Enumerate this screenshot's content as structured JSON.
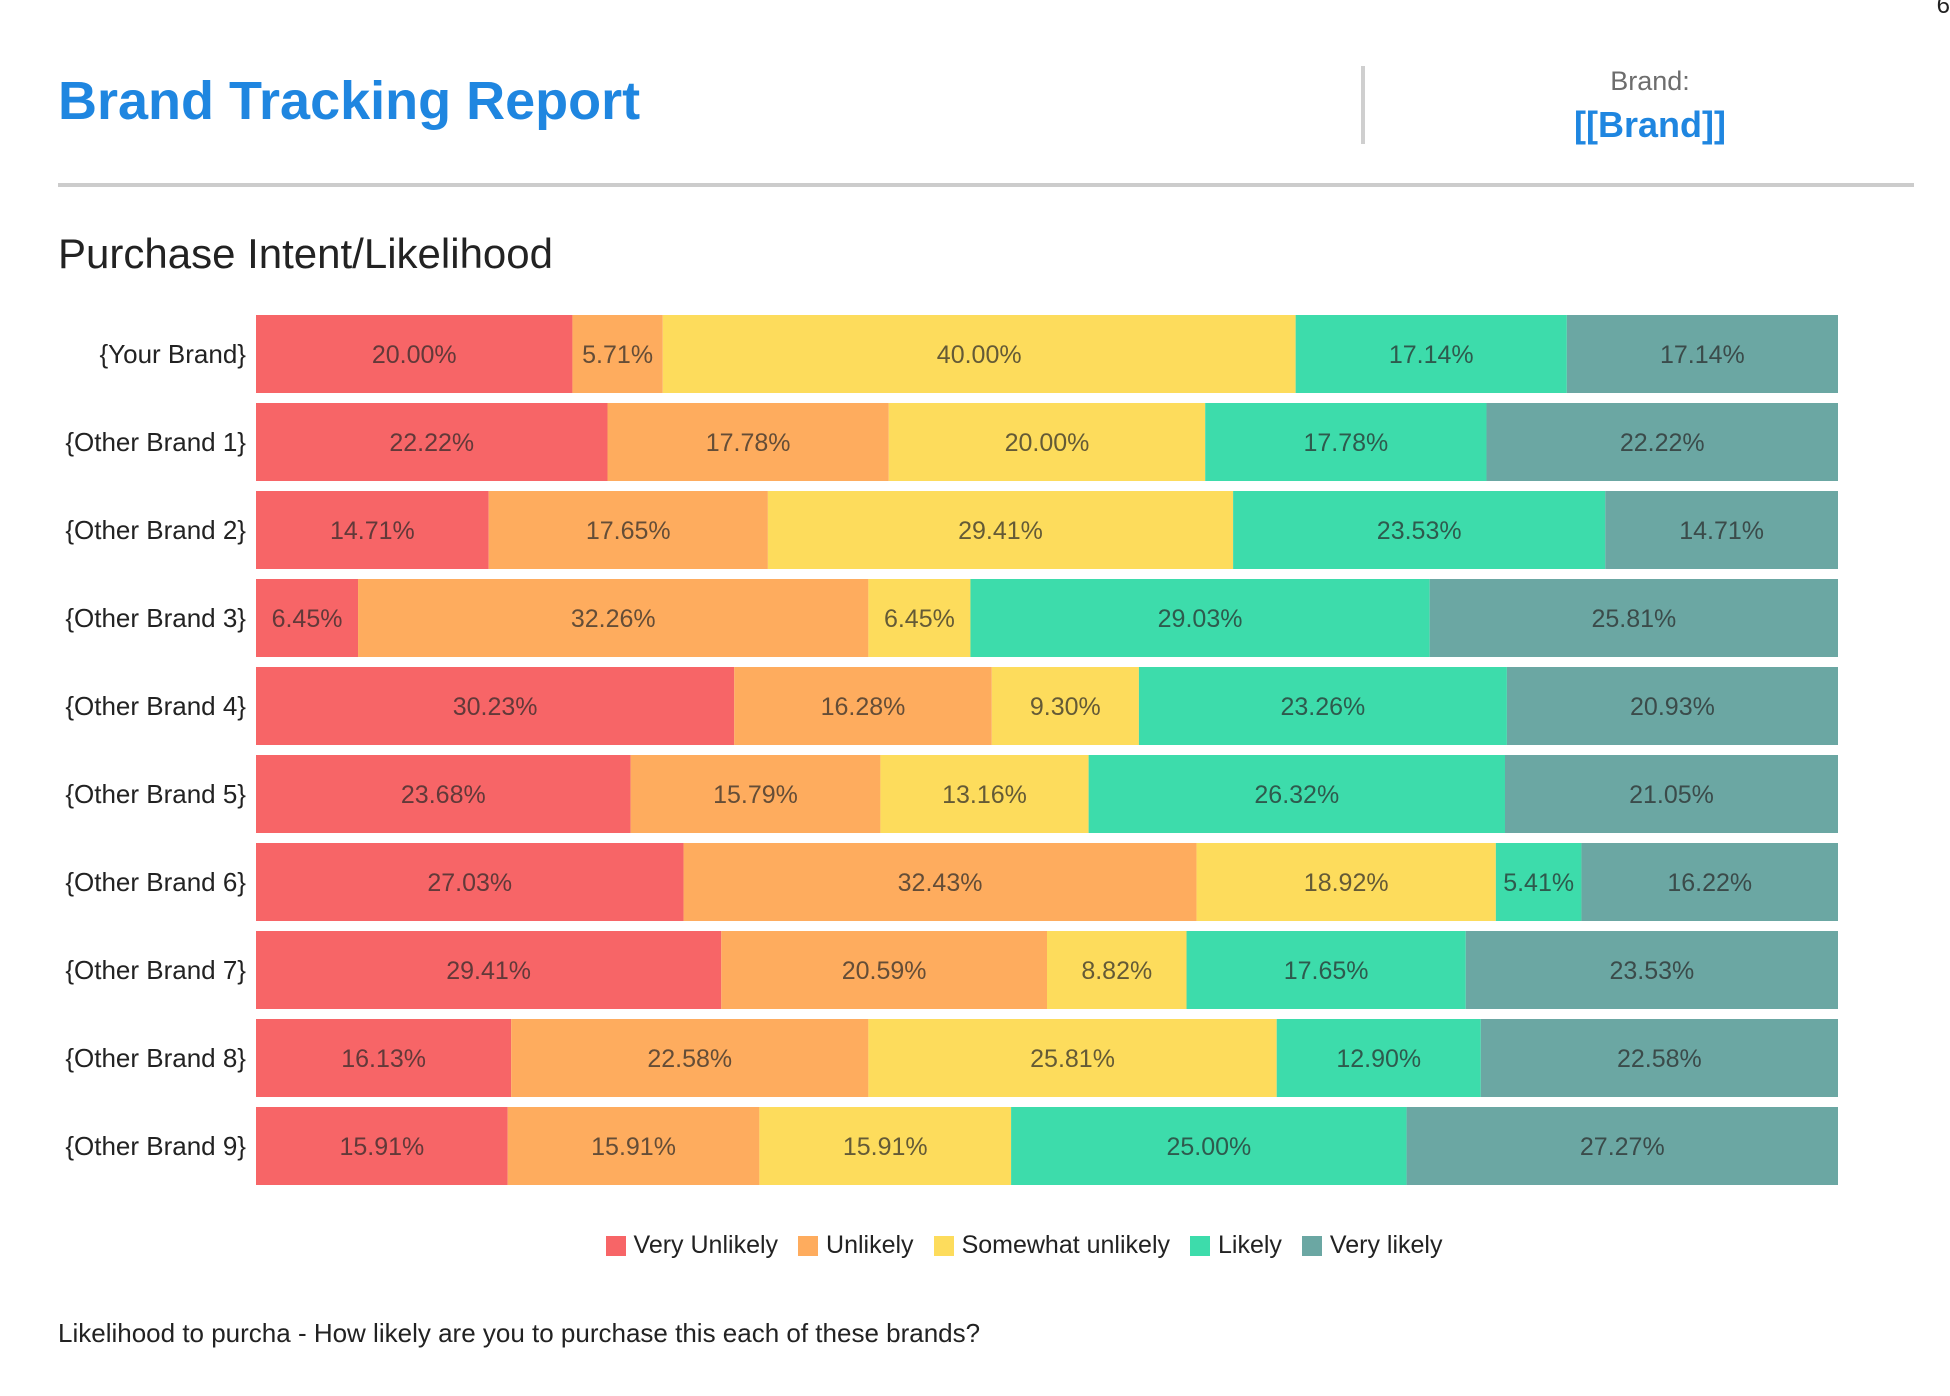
{
  "page_number": "6",
  "header": {
    "title": "Brand Tracking Report",
    "brand_label": "Brand:",
    "brand_value": "[[Brand]]"
  },
  "section_title": "Purchase Intent/Likelihood",
  "footnote": "Likelihood to purcha - How likely are you to purchase this each of these brands?",
  "colors": {
    "title": "#1F86E0",
    "very_unlikely": "#F76567",
    "unlikely": "#FEAC5E",
    "somewhat_unlikely": "#FDDC5C",
    "likely": "#3DDCAB",
    "very_likely": "#6BA7A3"
  },
  "chart_data": {
    "type": "bar",
    "orientation": "horizontal",
    "stacked": true,
    "normalized": true,
    "title": "Purchase Intent/Likelihood",
    "xlabel": "",
    "ylabel": "",
    "xlim": [
      0,
      100
    ],
    "grid": false,
    "legend_position": "bottom",
    "categories": [
      "{Your Brand}",
      "{Other Brand 1}",
      "{Other Brand 2}",
      "{Other Brand 3}",
      "{Other Brand 4}",
      "{Other Brand 5}",
      "{Other Brand 6}",
      "{Other Brand 7}",
      "{Other Brand 8}",
      "{Other Brand 9}"
    ],
    "series": [
      {
        "name": "Very Unlikely",
        "color": "#F76567",
        "values": [
          20.0,
          22.22,
          14.71,
          6.45,
          30.23,
          23.68,
          27.03,
          29.41,
          16.13,
          15.91
        ]
      },
      {
        "name": "Unlikely",
        "color": "#FEAC5E",
        "values": [
          5.71,
          17.78,
          17.65,
          32.26,
          16.28,
          15.79,
          32.43,
          20.59,
          22.58,
          15.91
        ]
      },
      {
        "name": "Somewhat unlikely",
        "color": "#FDDC5C",
        "values": [
          40.0,
          20.0,
          29.41,
          6.45,
          9.3,
          13.16,
          18.92,
          8.82,
          25.81,
          15.91
        ]
      },
      {
        "name": "Likely",
        "color": "#3DDCAB",
        "values": [
          17.14,
          17.78,
          23.53,
          29.03,
          23.26,
          26.32,
          5.41,
          17.65,
          12.9,
          25.0
        ]
      },
      {
        "name": "Very likely",
        "color": "#6BA7A3",
        "values": [
          17.14,
          22.22,
          14.71,
          25.81,
          20.93,
          21.05,
          16.22,
          23.53,
          22.58,
          27.27
        ]
      }
    ],
    "value_format": "{v}%"
  }
}
